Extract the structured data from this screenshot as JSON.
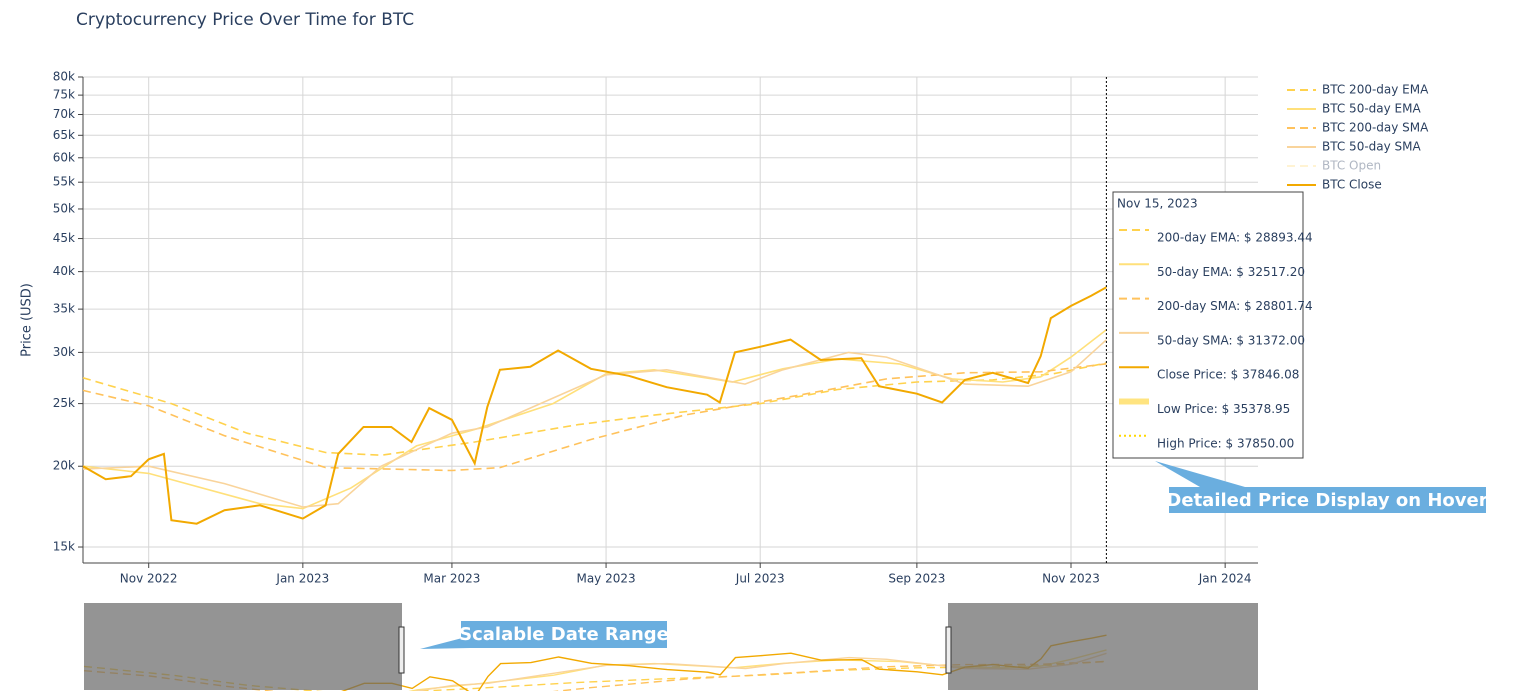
{
  "chart_data": {
    "type": "line",
    "title": "Cryptocurrency Price Over Time for BTC",
    "y_label": "Price (USD)",
    "log_y": true,
    "grid": true,
    "legend": "right",
    "xlim": [
      "2022-10-06",
      "2024-01-14"
    ],
    "xticks": [
      {
        "value": "2022-11-01",
        "label": "Nov 2022"
      },
      {
        "value": "2023-01-01",
        "label": "Jan 2023"
      },
      {
        "value": "2023-03-01",
        "label": "Mar 2023"
      },
      {
        "value": "2023-05-01",
        "label": "May 2023"
      },
      {
        "value": "2023-07-01",
        "label": "Jul 2023"
      },
      {
        "value": "2023-09-01",
        "label": "Sep 2023"
      },
      {
        "value": "2023-11-01",
        "label": "Nov 2023"
      },
      {
        "value": "2024-01-01",
        "label": "Jan 2024"
      }
    ],
    "ylim": [
      14170,
      80000
    ],
    "yticks": [
      {
        "value": 15000,
        "label": "15k"
      },
      {
        "value": 20000,
        "label": "20k"
      },
      {
        "value": 25000,
        "label": "25k"
      },
      {
        "value": 30000,
        "label": "30k"
      },
      {
        "value": 35000,
        "label": "35k"
      },
      {
        "value": 40000,
        "label": "40k"
      },
      {
        "value": 45000,
        "label": "45k"
      },
      {
        "value": 50000,
        "label": "50k"
      },
      {
        "value": 55000,
        "label": "55k"
      },
      {
        "value": 60000,
        "label": "60k"
      },
      {
        "value": 65000,
        "label": "65k"
      },
      {
        "value": 70000,
        "label": "70k"
      },
      {
        "value": 75000,
        "label": "75k"
      },
      {
        "value": 80000,
        "label": "80k"
      }
    ],
    "series": [
      {
        "name": "BTC 200-day EMA",
        "color": "#ffd24d",
        "dash": "dash",
        "x": [
          "2022-10-06",
          "2022-11-10",
          "2022-12-10",
          "2023-01-10",
          "2023-02-01",
          "2023-03-10",
          "2023-04-20",
          "2023-05-20",
          "2023-07-01",
          "2023-08-01",
          "2023-09-01",
          "2023-10-01",
          "2023-10-25",
          "2023-11-15"
        ],
        "values": [
          27400,
          25000,
          22500,
          21000,
          20800,
          21800,
          23200,
          24000,
          25000,
          26300,
          27000,
          27200,
          27800,
          28893
        ]
      },
      {
        "name": "BTC 50-day EMA",
        "color": "#ffe07a",
        "dash": "solid",
        "x": [
          "2022-10-06",
          "2022-11-01",
          "2022-12-15",
          "2023-01-01",
          "2023-01-20",
          "2023-02-15",
          "2023-03-10",
          "2023-04-10",
          "2023-05-01",
          "2023-05-20",
          "2023-06-20",
          "2023-07-10",
          "2023-08-01",
          "2023-08-25",
          "2023-09-15",
          "2023-10-05",
          "2023-10-20",
          "2023-11-01",
          "2023-11-15"
        ],
        "values": [
          20000,
          19500,
          17500,
          17200,
          18500,
          21500,
          22800,
          25000,
          27800,
          28200,
          27000,
          28300,
          29300,
          28800,
          27300,
          27000,
          27500,
          29500,
          32517
        ]
      },
      {
        "name": "BTC 200-day SMA",
        "color": "#ffc25c",
        "dash": "dash",
        "x": [
          "2022-10-06",
          "2022-11-01",
          "2022-12-01",
          "2023-01-10",
          "2023-03-01",
          "2023-03-20",
          "2023-04-25",
          "2023-06-01",
          "2023-07-15",
          "2023-08-20",
          "2023-09-20",
          "2023-10-20",
          "2023-11-15"
        ],
        "values": [
          26200,
          24800,
          22300,
          19900,
          19700,
          19900,
          22000,
          24000,
          25700,
          27300,
          27900,
          28000,
          28801
        ]
      },
      {
        "name": "BTC 50-day SMA",
        "color": "#f9d49b",
        "dash": "solid",
        "x": [
          "2022-10-06",
          "2022-11-01",
          "2022-12-01",
          "2023-01-01",
          "2023-01-15",
          "2023-02-01",
          "2023-03-01",
          "2023-03-15",
          "2023-04-05",
          "2023-05-01",
          "2023-05-25",
          "2023-06-25",
          "2023-07-10",
          "2023-08-05",
          "2023-08-20",
          "2023-09-20",
          "2023-10-15",
          "2023-11-01",
          "2023-11-15"
        ],
        "values": [
          19800,
          20000,
          18800,
          17300,
          17500,
          20000,
          22500,
          23000,
          25000,
          27700,
          28200,
          26800,
          28200,
          30000,
          29500,
          26800,
          26600,
          28000,
          31372
        ]
      },
      {
        "name": "BTC Open",
        "color": "#ffe9a8",
        "dash": "dash",
        "visible": "legendonly"
      },
      {
        "name": "BTC Close",
        "color": "#f2a900",
        "dash": "solid",
        "x": [
          "2022-10-06",
          "2022-10-15",
          "2022-10-25",
          "2022-11-01",
          "2022-11-07",
          "2022-11-10",
          "2022-11-20",
          "2022-12-01",
          "2022-12-15",
          "2023-01-01",
          "2023-01-10",
          "2023-01-15",
          "2023-01-25",
          "2023-02-05",
          "2023-02-13",
          "2023-02-20",
          "2023-03-01",
          "2023-03-10",
          "2023-03-15",
          "2023-03-20",
          "2023-04-01",
          "2023-04-12",
          "2023-04-25",
          "2023-05-10",
          "2023-05-25",
          "2023-06-10",
          "2023-06-15",
          "2023-06-21",
          "2023-07-01",
          "2023-07-13",
          "2023-07-25",
          "2023-08-10",
          "2023-08-17",
          "2023-09-01",
          "2023-09-11",
          "2023-09-20",
          "2023-10-01",
          "2023-10-15",
          "2023-10-20",
          "2023-10-24",
          "2023-11-01",
          "2023-11-09",
          "2023-11-15"
        ],
        "values": [
          20000,
          19100,
          19300,
          20500,
          20900,
          16500,
          16300,
          17100,
          17400,
          16600,
          17400,
          20900,
          23000,
          23000,
          21800,
          24600,
          23600,
          20200,
          24700,
          28200,
          28500,
          30200,
          28300,
          27600,
          26500,
          25800,
          25100,
          30000,
          30600,
          31400,
          29200,
          29400,
          26600,
          25900,
          25100,
          27200,
          27900,
          26900,
          29600,
          33900,
          35400,
          36700,
          37846
        ]
      }
    ],
    "tooltip": {
      "date": {
        "value": "2023-11-15",
        "label": "Nov 15, 2023"
      },
      "items": [
        {
          "label": "200-day EMA: $ 28893.44",
          "color": "#ffd24d",
          "dash": "dash"
        },
        {
          "label": "50-day EMA: $ 32517.20",
          "color": "#ffe07a",
          "dash": "solid"
        },
        {
          "label": "200-day SMA: $ 28801.74",
          "color": "#ffc25c",
          "dash": "dash"
        },
        {
          "label": "50-day SMA: $ 31372.00",
          "color": "#f9d49b",
          "dash": "solid"
        },
        {
          "label": "Close Price: $ 37846.08",
          "color": "#f2a900",
          "dash": "solid"
        },
        {
          "label": "Low Price: $ 35378.95",
          "color": "#ffd84a",
          "dash": "band"
        },
        {
          "label": "High Price: $ 37850.00",
          "color": "#ffd700",
          "dash": "dot"
        }
      ]
    },
    "annotations": [
      "Detailed Price Display on Hover",
      "Scalable Date Range"
    ]
  }
}
